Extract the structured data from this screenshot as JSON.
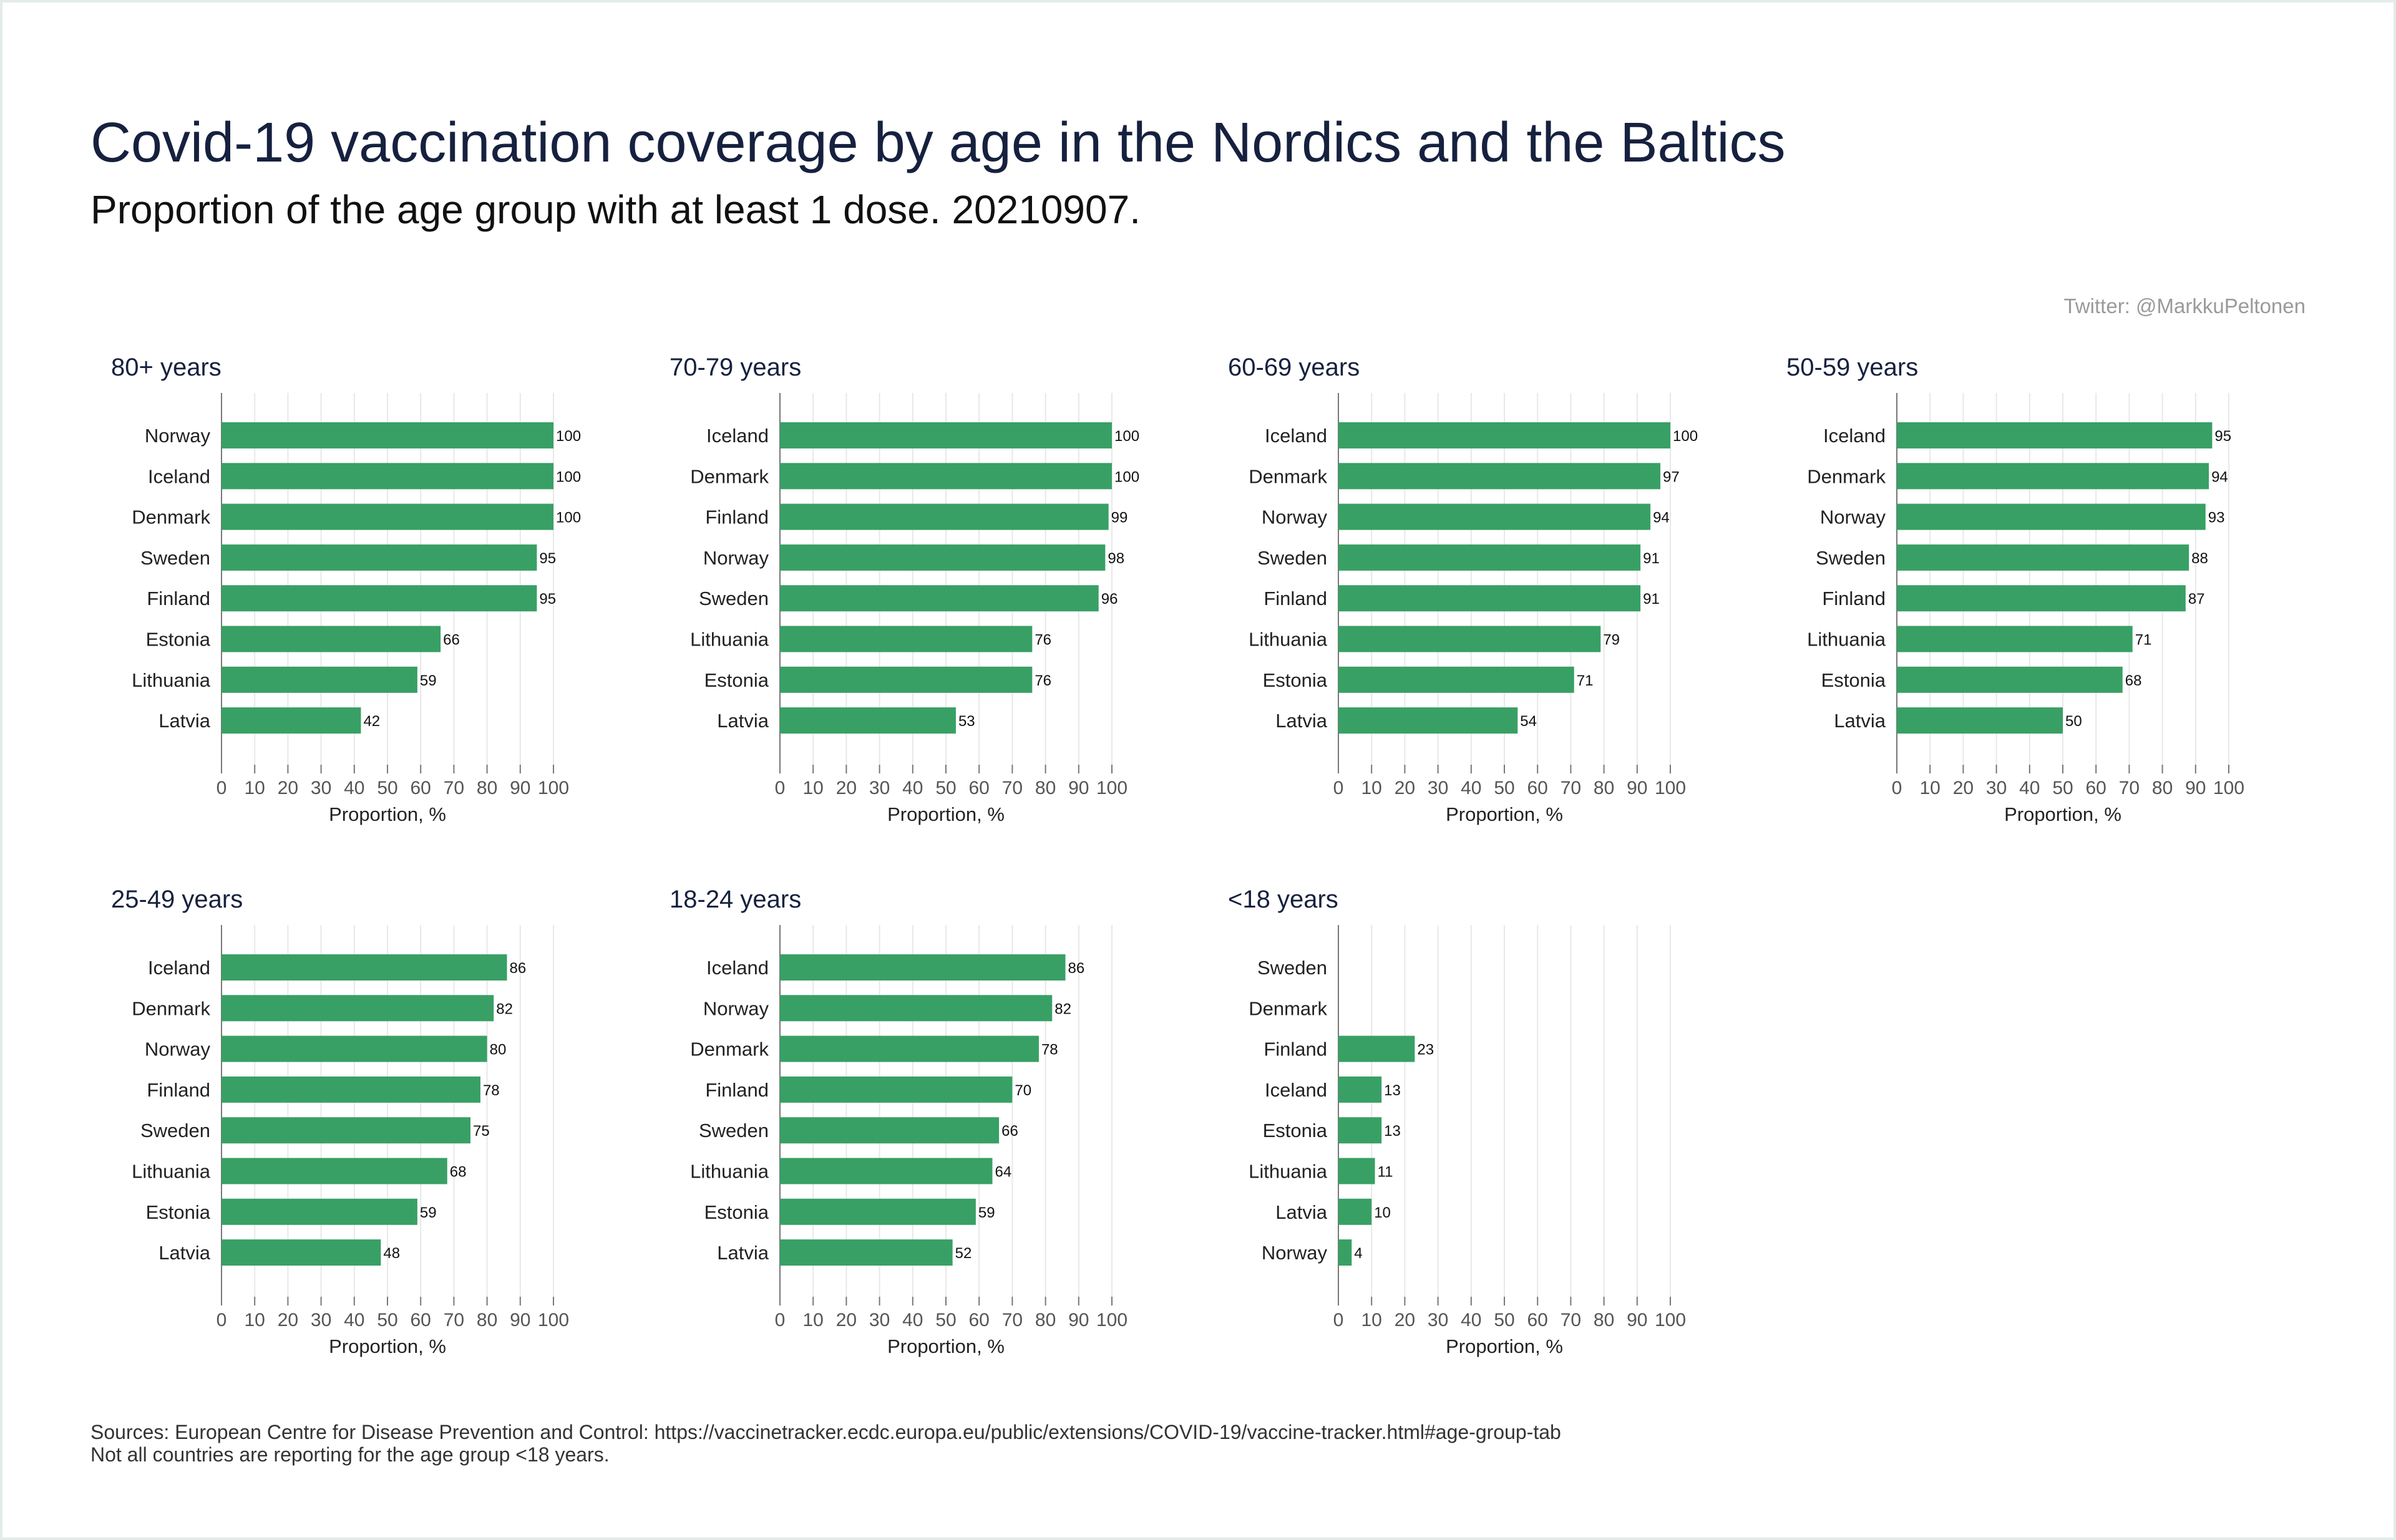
{
  "title": "Covid-19 vaccination coverage by age in the Nordics and the Baltics",
  "subtitle": "Proportion of the age group with at least 1 dose. 20210907.",
  "credit": "Twitter: @MarkkuPeltonen",
  "sources": {
    "line1": "Sources: European Centre for Disease Prevention and Control: https://vaccinetracker.ecdc.europa.eu/public/extensions/COVID-19/vaccine-tracker.html#age-group-tab",
    "line2": "Not all countries are reporting for the age group <18 years."
  },
  "colors": {
    "bar": "#38a065",
    "title": "#16213f",
    "grid": "#e8e8e8",
    "axis": "#777777"
  },
  "chart_data": [
    {
      "type": "bar",
      "orientation": "horizontal",
      "title": "80+ years",
      "categories": [
        "Norway",
        "Iceland",
        "Denmark",
        "Sweden",
        "Finland",
        "Estonia",
        "Lithuania",
        "Latvia"
      ],
      "values": [
        100,
        100,
        100,
        95,
        95,
        66,
        59,
        42
      ],
      "xlabel": "Proportion, %",
      "xlim": [
        0,
        100
      ],
      "xticks": [
        "0",
        "10",
        "20",
        "30",
        "40",
        "50",
        "60",
        "70",
        "80",
        "90",
        "100"
      ],
      "grid": true
    },
    {
      "type": "bar",
      "orientation": "horizontal",
      "title": "70-79 years",
      "categories": [
        "Iceland",
        "Denmark",
        "Finland",
        "Norway",
        "Sweden",
        "Lithuania",
        "Estonia",
        "Latvia"
      ],
      "values": [
        100,
        100,
        99,
        98,
        96,
        76,
        76,
        53
      ],
      "xlabel": "Proportion, %",
      "xlim": [
        0,
        100
      ],
      "xticks": [
        "0",
        "10",
        "20",
        "30",
        "40",
        "50",
        "60",
        "70",
        "80",
        "90",
        "100"
      ],
      "grid": true
    },
    {
      "type": "bar",
      "orientation": "horizontal",
      "title": "60-69 years",
      "categories": [
        "Iceland",
        "Denmark",
        "Norway",
        "Sweden",
        "Finland",
        "Lithuania",
        "Estonia",
        "Latvia"
      ],
      "values": [
        100,
        97,
        94,
        91,
        91,
        79,
        71,
        54
      ],
      "xlabel": "Proportion, %",
      "xlim": [
        0,
        100
      ],
      "xticks": [
        "0",
        "10",
        "20",
        "30",
        "40",
        "50",
        "60",
        "70",
        "80",
        "90",
        "100"
      ],
      "grid": true
    },
    {
      "type": "bar",
      "orientation": "horizontal",
      "title": "50-59 years",
      "categories": [
        "Iceland",
        "Denmark",
        "Norway",
        "Sweden",
        "Finland",
        "Lithuania",
        "Estonia",
        "Latvia"
      ],
      "values": [
        95,
        94,
        93,
        88,
        87,
        71,
        68,
        50
      ],
      "xlabel": "Proportion, %",
      "xlim": [
        0,
        100
      ],
      "xticks": [
        "0",
        "10",
        "20",
        "30",
        "40",
        "50",
        "60",
        "70",
        "80",
        "90",
        "100"
      ],
      "grid": true
    },
    {
      "type": "bar",
      "orientation": "horizontal",
      "title": "25-49 years",
      "categories": [
        "Iceland",
        "Denmark",
        "Norway",
        "Finland",
        "Sweden",
        "Lithuania",
        "Estonia",
        "Latvia"
      ],
      "values": [
        86,
        82,
        80,
        78,
        75,
        68,
        59,
        48
      ],
      "xlabel": "Proportion, %",
      "xlim": [
        0,
        100
      ],
      "xticks": [
        "0",
        "10",
        "20",
        "30",
        "40",
        "50",
        "60",
        "70",
        "80",
        "90",
        "100"
      ],
      "grid": true
    },
    {
      "type": "bar",
      "orientation": "horizontal",
      "title": "18-24 years",
      "categories": [
        "Iceland",
        "Norway",
        "Denmark",
        "Finland",
        "Sweden",
        "Lithuania",
        "Estonia",
        "Latvia"
      ],
      "values": [
        86,
        82,
        78,
        70,
        66,
        64,
        59,
        52
      ],
      "xlabel": "Proportion, %",
      "xlim": [
        0,
        100
      ],
      "xticks": [
        "0",
        "10",
        "20",
        "30",
        "40",
        "50",
        "60",
        "70",
        "80",
        "90",
        "100"
      ],
      "grid": true
    },
    {
      "type": "bar",
      "orientation": "horizontal",
      "title": "<18 years",
      "categories": [
        "Sweden",
        "Denmark",
        "Finland",
        "Iceland",
        "Estonia",
        "Lithuania",
        "Latvia",
        "Norway"
      ],
      "values": [
        null,
        null,
        23,
        13,
        13,
        11,
        10,
        4
      ],
      "xlabel": "Proportion, %",
      "xlim": [
        0,
        100
      ],
      "xticks": [
        "0",
        "10",
        "20",
        "30",
        "40",
        "50",
        "60",
        "70",
        "80",
        "90",
        "100"
      ],
      "grid": true
    }
  ]
}
